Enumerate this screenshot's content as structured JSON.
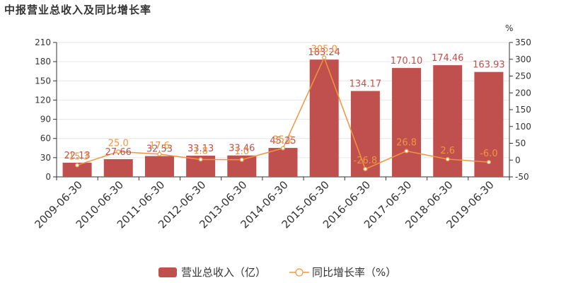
{
  "title": "中报营业总收入及同比增长率",
  "colors": {
    "bar": "#c0504d",
    "line": "#f0953f",
    "axis": "#333333",
    "grid": "#e6e6e6"
  },
  "chart_data": {
    "type": "bar",
    "title": "中报营业总收入及同比增长率",
    "categories": [
      "2009-06-30",
      "2010-06-30",
      "2011-06-30",
      "2012-06-30",
      "2013-06-30",
      "2014-06-30",
      "2015-06-30",
      "2016-06-30",
      "2017-06-30",
      "2018-06-30",
      "2019-06-30"
    ],
    "series": [
      {
        "name": "营业总收入（亿）",
        "type": "bar",
        "axis": "left",
        "values": [
          22.13,
          27.66,
          32.53,
          33.13,
          33.46,
          45.25,
          183.24,
          134.17,
          170.1,
          174.46,
          163.93
        ],
        "labels": [
          "22.13",
          "27.66",
          "32.53",
          "33.13",
          "33.46",
          "45.25",
          "183.24",
          "134.17",
          "170.10",
          "174.46",
          "163.93"
        ]
      },
      {
        "name": "同比增长率（%）",
        "type": "line",
        "axis": "right",
        "values": [
          -15.3,
          25.0,
          17.6,
          1.8,
          1.0,
          35.2,
          305.0,
          -26.8,
          26.8,
          2.6,
          -6.0
        ],
        "labels": [
          "-15.3",
          "25.0",
          "17.6",
          "1.8",
          "1.0",
          "35.2",
          "305.0",
          "-26.8",
          "26.8",
          "2.6",
          "-6.0"
        ]
      }
    ],
    "yleft": {
      "ylim": [
        0,
        210
      ],
      "ticks": [
        0,
        30,
        60,
        90,
        120,
        150,
        180,
        210
      ]
    },
    "yright": {
      "ylim": [
        -50,
        350
      ],
      "ticks": [
        -50,
        0,
        50,
        100,
        150,
        200,
        250,
        300,
        350
      ],
      "unit": "%"
    },
    "grid": true,
    "legend_position": "bottom-center"
  }
}
